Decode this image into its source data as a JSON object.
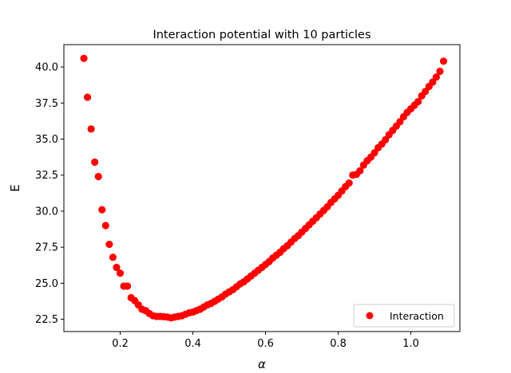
{
  "chart_data": {
    "type": "scatter",
    "title": "Interaction potential with 10 particles",
    "xlabel": "α",
    "ylabel": "E",
    "xlim": [
      0.045,
      1.135
    ],
    "ylim": [
      21.65,
      41.55
    ],
    "xticks": [
      0.2,
      0.4,
      0.6,
      0.8,
      1.0
    ],
    "xtick_labels": [
      "0.2",
      "0.4",
      "0.6",
      "0.8",
      "1.0"
    ],
    "yticks": [
      22.5,
      25.0,
      27.5,
      30.0,
      32.5,
      35.0,
      37.5,
      40.0
    ],
    "ytick_labels": [
      "22.5",
      "25.0",
      "27.5",
      "30.0",
      "32.5",
      "35.0",
      "37.5",
      "40.0"
    ],
    "grid": false,
    "legend_position": "lower-right",
    "series": [
      {
        "name": "Interaction",
        "color": "#ff0000",
        "marker": "circle",
        "x": [
          0.1,
          0.11,
          0.12,
          0.13,
          0.14,
          0.15,
          0.16,
          0.17,
          0.18,
          0.19,
          0.2,
          0.21,
          0.22,
          0.23,
          0.24,
          0.25,
          0.26,
          0.27,
          0.28,
          0.29,
          0.3,
          0.31,
          0.32,
          0.33,
          0.34,
          0.35,
          0.36,
          0.37,
          0.38,
          0.39,
          0.4,
          0.41,
          0.42,
          0.43,
          0.44,
          0.45,
          0.46,
          0.47,
          0.48,
          0.49,
          0.5,
          0.51,
          0.52,
          0.53,
          0.54,
          0.55,
          0.56,
          0.57,
          0.58,
          0.59,
          0.6,
          0.61,
          0.62,
          0.63,
          0.64,
          0.65,
          0.66,
          0.67,
          0.68,
          0.69,
          0.7,
          0.71,
          0.72,
          0.73,
          0.74,
          0.75,
          0.76,
          0.77,
          0.78,
          0.79,
          0.8,
          0.81,
          0.82,
          0.83,
          0.84,
          0.85,
          0.86,
          0.87,
          0.88,
          0.89,
          0.9,
          0.91,
          0.92,
          0.93,
          0.94,
          0.95,
          0.96,
          0.97,
          0.98,
          0.99,
          1.0,
          1.01,
          1.02,
          1.03,
          1.04,
          1.05,
          1.06,
          1.07,
          1.08,
          1.09
        ],
        "y": [
          40.6,
          37.9,
          35.7,
          33.4,
          32.4,
          30.1,
          29.0,
          27.7,
          26.8,
          26.1,
          25.7,
          24.8,
          24.8,
          24.0,
          23.8,
          23.5,
          23.2,
          23.1,
          22.9,
          22.75,
          22.7,
          22.7,
          22.68,
          22.65,
          22.6,
          22.65,
          22.7,
          22.75,
          22.85,
          22.95,
          23.0,
          23.1,
          23.2,
          23.35,
          23.5,
          23.6,
          23.75,
          23.9,
          24.05,
          24.25,
          24.4,
          24.55,
          24.75,
          24.95,
          25.1,
          25.3,
          25.5,
          25.7,
          25.9,
          26.1,
          26.3,
          26.5,
          26.75,
          26.95,
          27.15,
          27.4,
          27.6,
          27.85,
          28.1,
          28.3,
          28.55,
          28.8,
          29.05,
          29.3,
          29.55,
          29.8,
          30.05,
          30.3,
          30.6,
          30.85,
          31.1,
          31.4,
          31.7,
          31.95,
          32.5,
          32.55,
          32.8,
          33.2,
          33.5,
          33.75,
          34.05,
          34.4,
          34.65,
          34.95,
          35.3,
          35.6,
          35.9,
          36.2,
          36.55,
          36.85,
          37.1,
          37.35,
          37.6,
          38.0,
          38.3,
          38.65,
          38.95,
          39.3,
          39.7,
          40.4
        ]
      }
    ]
  }
}
